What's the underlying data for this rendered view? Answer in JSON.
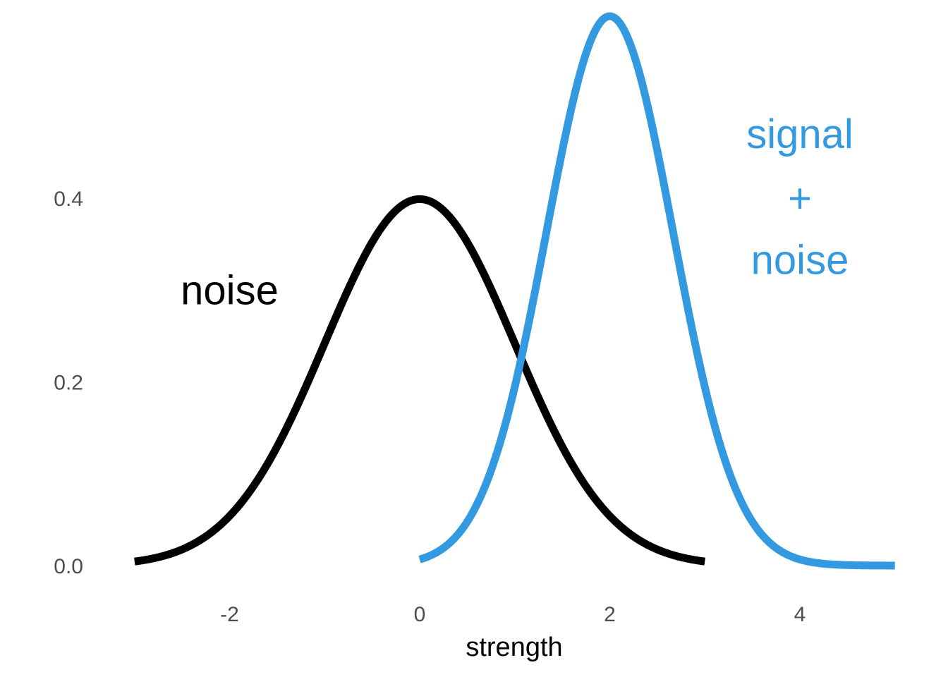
{
  "chart_data": {
    "type": "line",
    "title": "",
    "xlabel": "strength",
    "ylabel": "",
    "xlim": [
      -3,
      5
    ],
    "ylim": [
      0,
      0.6
    ],
    "x_ticks": [
      "-2",
      "0",
      "2",
      "4"
    ],
    "y_ticks": [
      "0.0",
      "0.2",
      "0.4"
    ],
    "grid": false,
    "series": [
      {
        "color": "#000000",
        "distribution": {
          "family": "normal",
          "mean": 0,
          "sd": 1
        },
        "x_range": [
          -3,
          3
        ]
      },
      {
        "color": "#3399e0",
        "distribution": {
          "family": "normal",
          "mean": 2,
          "sd": 0.667
        },
        "x_range": [
          0,
          5
        ]
      }
    ],
    "annotations": [
      {
        "text": "noise",
        "color": "#000000",
        "x": -2.0,
        "y": 0.3
      },
      {
        "text": "signal",
        "color": "#3399e0",
        "x": 4.0,
        "y": 0.47
      },
      {
        "text": "+",
        "color": "#3399e0",
        "x": 4.0,
        "y": 0.4
      },
      {
        "text": "noise",
        "color": "#3399e0",
        "x": 4.0,
        "y": 0.333
      }
    ]
  }
}
